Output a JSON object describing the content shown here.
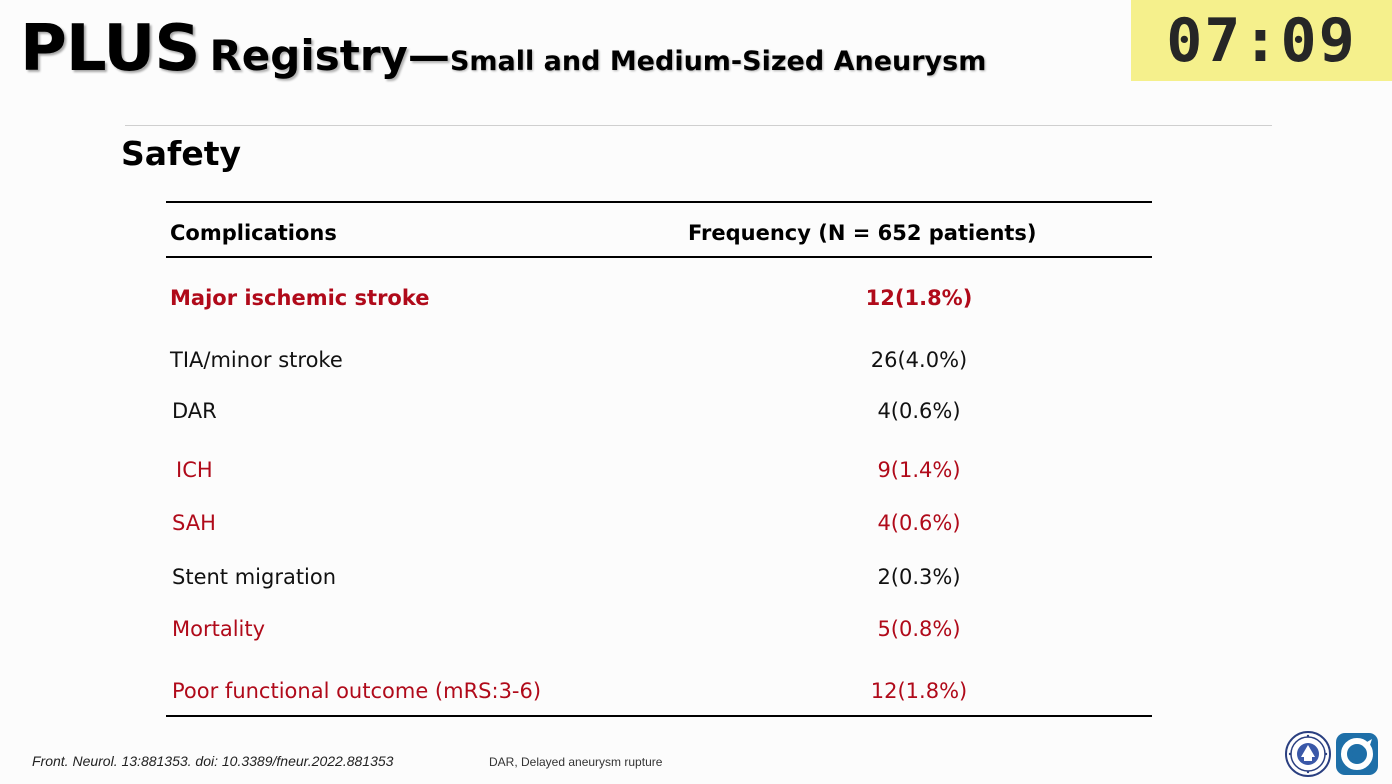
{
  "title": {
    "plus": "PLUS",
    "registry": "Registry—",
    "subtitle": "Small and Medium-Sized Aneurysm"
  },
  "timer": "07:09",
  "section_title": "Safety",
  "table": {
    "headers": [
      "Complications",
      "Frequency (N = 652 patients)"
    ],
    "rows": [
      {
        "label": "Major ischemic stroke",
        "value": "12(1.8%)",
        "color": "#b00a1a",
        "bold": true
      },
      {
        "label": "TIA/minor stroke",
        "value": "26(4.0%)",
        "color": "#111111",
        "bold": false
      },
      {
        "label": "DAR",
        "value": "4(0.6%)",
        "color": "#111111",
        "bold": false
      },
      {
        "label": "ICH",
        "value": "9(1.4%)",
        "color": "#b00a1a",
        "bold": false
      },
      {
        "label": "SAH",
        "value": "4(0.6%)",
        "color": "#b00a1a",
        "bold": false
      },
      {
        "label": "Stent migration",
        "value": "2(0.3%)",
        "color": "#111111",
        "bold": false
      },
      {
        "label": "Mortality",
        "value": "5(0.8%)",
        "color": "#b00a1a",
        "bold": false
      },
      {
        "label": "Poor functional outcome (mRS:3-6)",
        "value": "12(1.8%)",
        "color": "#b00a1a",
        "bold": false
      }
    ]
  },
  "footer": {
    "reference": "Front. Neurol. 13:881353. doi: 10.3389/fneur.2022.881353",
    "note": "DAR, Delayed aneurysm rupture"
  },
  "icons": [
    "university-seal-icon",
    "society-logo-icon"
  ]
}
